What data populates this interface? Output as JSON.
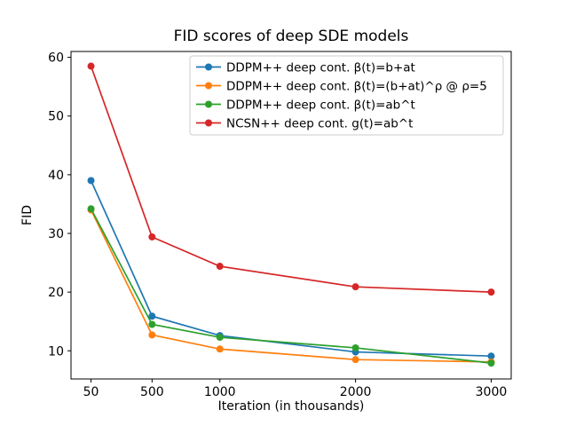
{
  "chart_data": {
    "type": "line",
    "title": "FID scores of deep SDE models",
    "xlabel": "Iteration (in thousands)",
    "ylabel": "FID",
    "x": [
      50,
      500,
      1000,
      2000,
      3000
    ],
    "series": [
      {
        "name": "DDPM++ deep cont. β(t)=b+at",
        "color": "#1f77b4",
        "values": [
          39.0,
          15.9,
          12.6,
          9.8,
          9.1
        ]
      },
      {
        "name": "DDPM++ deep cont. β(t)=(b+at)^ρ @ ρ=5",
        "color": "#ff7f0e",
        "values": [
          34.0,
          12.7,
          10.3,
          8.5,
          8.1
        ]
      },
      {
        "name": "DDPM++ deep cont. β(t)=ab^t",
        "color": "#2ca02c",
        "values": [
          34.2,
          14.5,
          12.3,
          10.5,
          7.9
        ]
      },
      {
        "name": "NCSN++ deep cont. g(t)=ab^t",
        "color": "#d62728",
        "values": [
          58.5,
          29.4,
          24.4,
          20.9,
          20.0
        ]
      }
    ],
    "xticks": [
      50,
      500,
      1000,
      2000,
      3000
    ],
    "yticks": [
      10,
      20,
      30,
      40,
      50,
      60
    ],
    "xlim": [
      -97.5,
      3147.5
    ],
    "ylim": [
      5.2,
      61.0
    ],
    "grid": false,
    "legend_position": "upper center",
    "marker": "circle",
    "line_width": 1.7,
    "marker_radius": 4,
    "axis_color": "#000000",
    "legend_border_color": "#cccccc"
  }
}
